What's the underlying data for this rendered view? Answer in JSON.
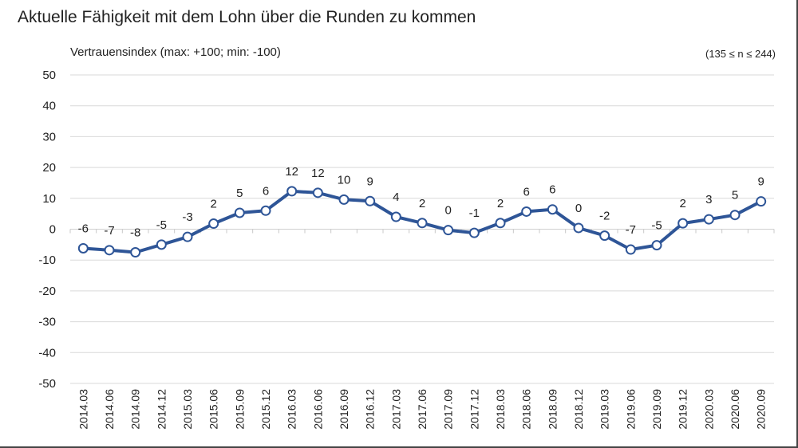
{
  "chart_data": {
    "type": "line",
    "title": "Aktuelle Fähigkeit mit dem Lohn über die Runden zu kommen",
    "ylabel": "Vertrauensindex (max: +100; min: -100)",
    "note": "(135 ≤ n ≤ 244)",
    "xlabel": "",
    "ylim": [
      -50,
      50
    ],
    "yticks": [
      50,
      40,
      30,
      20,
      10,
      0,
      -10,
      -20,
      -30,
      -40,
      -50
    ],
    "grid": true,
    "legend": "none",
    "colors": {
      "line": "#2E5597",
      "marker_fill": "#ffffff",
      "grid": "#d9d9d9"
    },
    "categories": [
      "2014.03",
      "2014.06",
      "2014.09",
      "2014.12",
      "2015.03",
      "2015.06",
      "2015.09",
      "2015.12",
      "2016.03",
      "2016.06",
      "2016.09",
      "2016.12",
      "2017.03",
      "2017.06",
      "2017.09",
      "2017.12",
      "2018.03",
      "2018.06",
      "2018.09",
      "2018.12",
      "2019.03",
      "2019.06",
      "2019.09",
      "2019.12",
      "2020.03",
      "2020.06",
      "2020.09"
    ],
    "values": [
      -6.2,
      -6.8,
      -7.5,
      -5.0,
      -2.5,
      1.8,
      5.3,
      6.0,
      12.3,
      11.8,
      9.6,
      9.1,
      4.0,
      2.0,
      -0.3,
      -1.2,
      2.0,
      5.7,
      6.4,
      0.4,
      -2.1,
      -6.6,
      -5.2,
      1.9,
      3.2,
      4.6,
      9.0
    ],
    "data_labels": [
      "-6",
      "-7",
      "-8",
      "-5",
      "-3",
      "2",
      "5",
      "6",
      "12",
      "12",
      "10",
      "9",
      "4",
      "2",
      "0",
      "-1",
      "2",
      "6",
      "6",
      "0",
      "-2",
      "-7",
      "-5",
      "2",
      "3",
      "5",
      "9"
    ]
  }
}
